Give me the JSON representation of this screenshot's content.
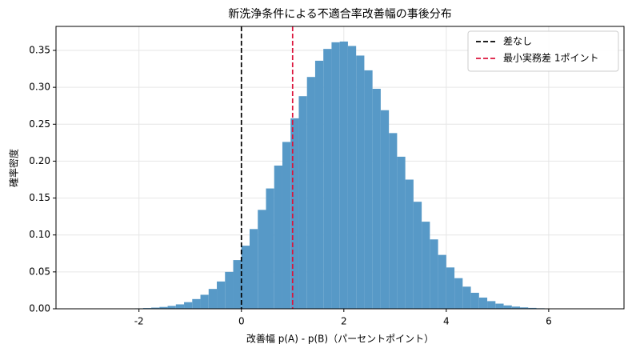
{
  "chart_data": {
    "type": "histogram",
    "title": "新洗浄条件による不適合率改善幅の事後分布",
    "xlabel": "改善幅 p(A) - p(B)（パーセントポイント）",
    "ylabel": "確率密度",
    "color": "#5799c7",
    "bins": [
      -2.56,
      -2.4,
      -2.24,
      -2.08,
      -1.92,
      -1.76,
      -1.6,
      -1.44,
      -1.28,
      -1.12,
      -0.96,
      -0.8,
      -0.64,
      -0.48,
      -0.32,
      -0.16,
      0,
      0.16,
      0.32,
      0.48,
      0.64,
      0.8,
      0.96,
      1.12,
      1.28,
      1.44,
      1.6,
      1.76,
      1.92,
      2.08,
      2.24,
      2.4,
      2.56,
      2.72,
      2.88,
      3.04,
      3.2,
      3.36,
      3.52,
      3.68,
      3.84,
      4,
      4.16,
      4.32,
      4.48,
      4.64,
      4.8,
      4.96,
      5.12,
      5.28,
      5.44,
      5.6,
      5.76,
      5.92,
      6.08,
      6.24,
      6.4
    ],
    "values": [
      0.0001,
      0.0002,
      0.0003,
      0.0006,
      0.001,
      0.0016,
      0.0025,
      0.0039,
      0.006,
      0.009,
      0.0132,
      0.019,
      0.0269,
      0.037,
      0.05,
      0.066,
      0.0855,
      0.108,
      0.134,
      0.163,
      0.194,
      0.226,
      0.258,
      0.288,
      0.314,
      0.336,
      0.352,
      0.361,
      0.362,
      0.356,
      0.343,
      0.323,
      0.298,
      0.269,
      0.238,
      0.206,
      0.175,
      0.145,
      0.118,
      0.094,
      0.073,
      0.056,
      0.0415,
      0.03,
      0.0217,
      0.0152,
      0.0104,
      0.007,
      0.0046,
      0.003,
      0.0019,
      0.0012,
      0.0007,
      0.0004,
      0.0002,
      0.0001
    ],
    "vlines": [
      {
        "name": "差なし",
        "x": 0,
        "color": "#000000"
      },
      {
        "name": "最小実務差 1ポイント",
        "x": 1,
        "color": "#dc143c"
      }
    ],
    "xlim": [
      -3.62,
      7.47
    ],
    "ylim": [
      0,
      0.3825
    ],
    "xticks": [
      -2,
      0,
      2,
      4,
      6
    ],
    "yticks": [
      {
        "value": 0,
        "label": "0.00"
      },
      {
        "value": 0.05,
        "label": "0.05"
      },
      {
        "value": 0.1,
        "label": "0.10"
      },
      {
        "value": 0.15,
        "label": "0.15"
      },
      {
        "value": 0.2,
        "label": "0.20"
      },
      {
        "value": 0.25,
        "label": "0.25"
      },
      {
        "value": 0.3,
        "label": "0.30"
      },
      {
        "value": 0.35,
        "label": "0.35"
      }
    ],
    "grid": true,
    "legend": "upper right"
  }
}
